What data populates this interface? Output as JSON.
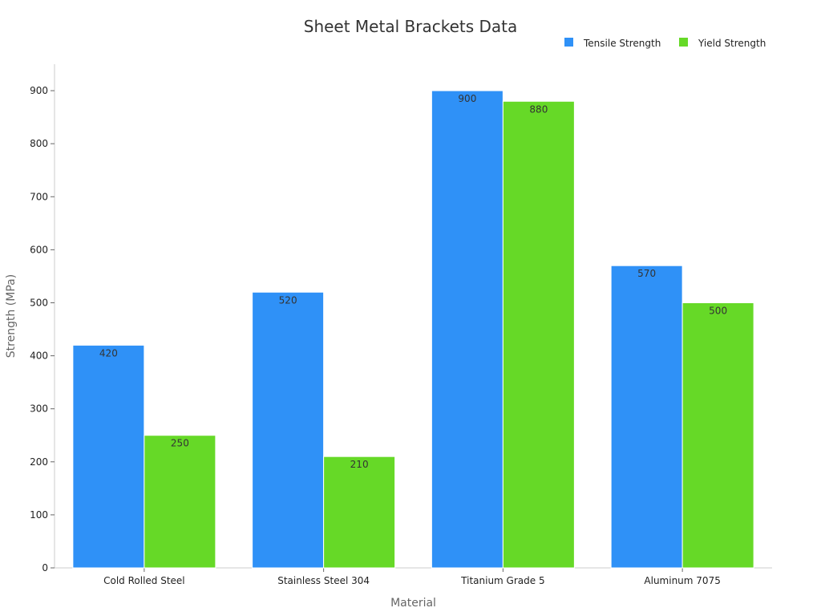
{
  "chart_data": {
    "type": "bar",
    "title": "Sheet Metal Brackets Data",
    "xlabel": "Material",
    "ylabel": "Strength (MPa)",
    "categories": [
      "Cold Rolled Steel",
      "Stainless Steel 304",
      "Titanium Grade 5",
      "Aluminum 7075"
    ],
    "series": [
      {
        "name": "Tensile Strength",
        "values": [
          420,
          520,
          900,
          570
        ],
        "color": "#2f91f7"
      },
      {
        "name": "Yield Strength",
        "values": [
          250,
          210,
          880,
          500
        ],
        "color": "#66d927"
      }
    ],
    "ylim": [
      0,
      950
    ],
    "yticks": [
      0,
      100,
      200,
      300,
      400,
      500,
      600,
      700,
      800,
      900
    ],
    "grid": false,
    "legend_position": "top-right",
    "data_labels": true
  }
}
